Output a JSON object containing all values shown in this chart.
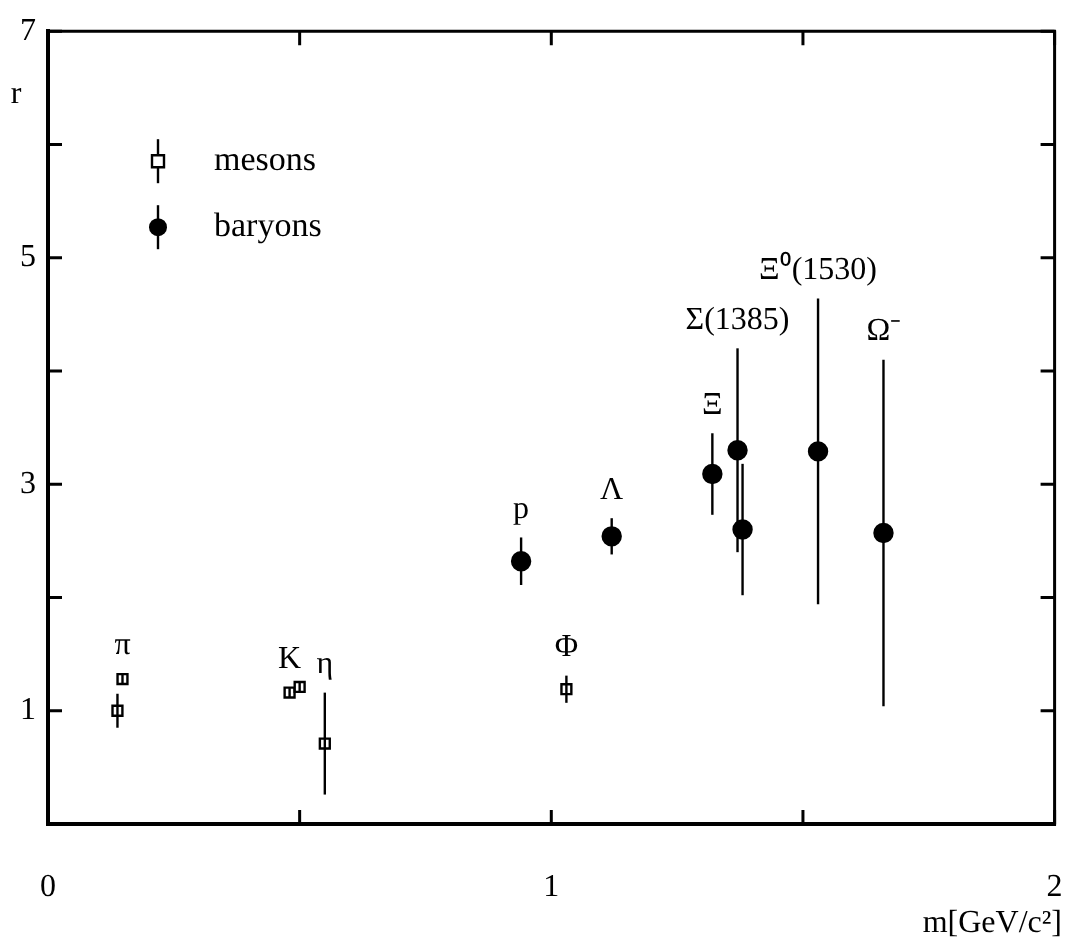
{
  "chart_data": {
    "type": "scatter",
    "xlabel": "m[GeV/c²]",
    "ylabel": "r",
    "xlim": [
      0,
      2
    ],
    "xticks": [
      0,
      {
        "value": 0.5,
        "label": null
      },
      1,
      {
        "value": 1.5,
        "label": null
      },
      2
    ],
    "ylim": [
      0,
      7
    ],
    "yticks": [
      {
        "value": 0,
        "label": null
      },
      1,
      {
        "value": 2,
        "label": null
      },
      3,
      {
        "value": 4,
        "label": null
      },
      5,
      {
        "value": 6,
        "label": null
      },
      7
    ],
    "grid": false,
    "legend": "top left",
    "series": [
      {
        "name": "mesons",
        "color": "#000000",
        "marker": "square",
        "x": [
          0.138,
          0.148,
          0.48,
          0.5,
          0.55,
          1.03
        ],
        "values": [
          1.0,
          1.28,
          1.16,
          1.21,
          0.71,
          1.19
        ],
        "errors": [
          0.15,
          0.05,
          0.04,
          0.04,
          0.45,
          0.12
        ]
      },
      {
        "name": "baryons",
        "color": "#000000",
        "marker": "circle",
        "x": [
          0.94,
          1.12,
          1.32,
          1.37,
          1.38,
          1.53,
          1.66
        ],
        "values": [
          2.32,
          2.54,
          3.09,
          3.3,
          2.6,
          3.29,
          2.57
        ],
        "errors": [
          0.21,
          0.16,
          0.36,
          0.9,
          0.58,
          1.35,
          1.53
        ]
      }
    ],
    "annotations": [
      {
        "text": "π",
        "x": 0.148,
        "y": 1.33
      },
      {
        "text": "K",
        "x": 0.48,
        "y": 1.2
      },
      {
        "text": "η",
        "x": 0.55,
        "y": 1.16
      },
      {
        "text": "Φ",
        "x": 1.03,
        "y": 1.31
      },
      {
        "text": "p",
        "x": 0.94,
        "y": 2.53
      },
      {
        "text": "Λ",
        "x": 1.12,
        "y": 2.7
      },
      {
        "text": "Ξ",
        "x": 1.32,
        "y": 3.45
      },
      {
        "text": "Σ(1385)",
        "x": 1.37,
        "y": 4.2
      },
      {
        "text": "Ξ⁰(1530)",
        "x": 1.53,
        "y": 4.64
      },
      {
        "text": "Ω⁻",
        "x": 1.66,
        "y": 4.1
      }
    ]
  }
}
